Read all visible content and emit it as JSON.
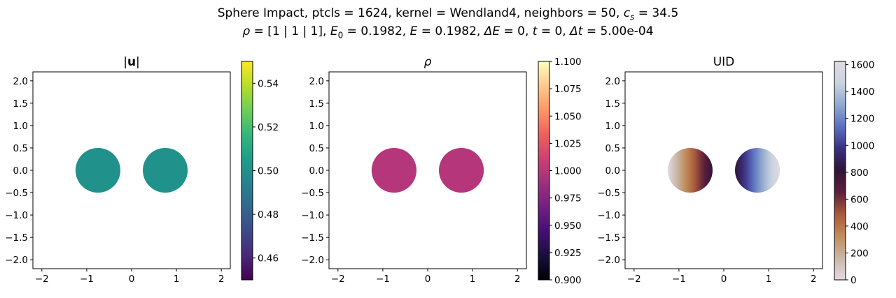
{
  "suptitle": {
    "line1_prefix": "Sphere Impact, ptcls = 1624, kernel = Wendland4, neighbors = 50, ",
    "line1_cs_symbol": "c",
    "line1_cs_sub": "s",
    "line1_cs_value": " = 34.5",
    "line2_rho_symbol": "ρ",
    "line2_rho_value": " = [1 | 1 | 1], ",
    "line2_E0_symbol": "E",
    "line2_E0_sub": "0",
    "line2_E0_value": " = 0.1982, ",
    "line2_E_symbol": "E",
    "line2_E_value": " = 0.1982, ",
    "line2_dE_symbol": "ΔE",
    "line2_dE_value": " = 0, ",
    "line2_t_symbol": "t",
    "line2_t_value": " = 0, ",
    "line2_dt_symbol": "Δt",
    "line2_dt_value": " = 5.00e-04"
  },
  "chart_data": [
    {
      "type": "scatter",
      "title_bars": "|",
      "title_symbol": "u",
      "xlim": [
        -2.2,
        2.2
      ],
      "ylim": [
        -2.2,
        2.2
      ],
      "x_ticks": [
        "−2",
        "−1",
        "0",
        "1",
        "2"
      ],
      "y_ticks": [
        "2.0",
        "1.5",
        "1.0",
        "0.5",
        "0.0",
        "−0.5",
        "−1.0",
        "−1.5",
        "−2.0"
      ],
      "spheres": [
        {
          "center": [
            -0.75,
            0
          ],
          "radius": 0.5,
          "value": 0.5
        },
        {
          "center": [
            0.75,
            0
          ],
          "radius": 0.5,
          "value": 0.5
        }
      ],
      "colorbar": {
        "colormap": "viridis",
        "range": [
          0.45,
          0.55
        ],
        "ticks": [
          "0.54",
          "0.52",
          "0.50",
          "0.48",
          "0.46"
        ],
        "tick_values": [
          0.54,
          0.52,
          0.5,
          0.48,
          0.46
        ]
      },
      "point_color": "#21918c"
    },
    {
      "type": "scatter",
      "title": "ρ",
      "xlim": [
        -2.2,
        2.2
      ],
      "ylim": [
        -2.2,
        2.2
      ],
      "x_ticks": [
        "−2",
        "−1",
        "0",
        "1",
        "2"
      ],
      "y_ticks": [
        "2.0",
        "1.5",
        "1.0",
        "0.5",
        "0.0",
        "−0.5",
        "−1.0",
        "−1.5",
        "−2.0"
      ],
      "spheres": [
        {
          "center": [
            -0.75,
            0
          ],
          "radius": 0.5,
          "value": 1.0
        },
        {
          "center": [
            0.75,
            0
          ],
          "radius": 0.5,
          "value": 1.0
        }
      ],
      "colorbar": {
        "colormap": "magma",
        "range": [
          0.9,
          1.1
        ],
        "ticks": [
          "1.100",
          "1.075",
          "1.050",
          "1.025",
          "1.000",
          "0.975",
          "0.950",
          "0.925",
          "0.900"
        ],
        "tick_values": [
          1.1,
          1.075,
          1.05,
          1.025,
          1.0,
          0.975,
          0.95,
          0.925,
          0.9
        ]
      },
      "point_color": "#b5367a"
    },
    {
      "type": "scatter",
      "title": "UID",
      "xlim": [
        -2.2,
        2.2
      ],
      "ylim": [
        -2.2,
        2.2
      ],
      "x_ticks": [
        "−2",
        "−1",
        "0",
        "1",
        "2"
      ],
      "y_ticks": [
        "2.0",
        "1.5",
        "1.0",
        "0.5",
        "0.0",
        "−0.5",
        "−1.0",
        "−1.5",
        "−2.0"
      ],
      "spheres": [
        {
          "center": [
            -0.75,
            0
          ],
          "radius": 0.5,
          "uid_range": [
            0,
            812
          ]
        },
        {
          "center": [
            0.75,
            0
          ],
          "radius": 0.5,
          "uid_range": [
            812,
            1624
          ]
        }
      ],
      "colorbar": {
        "colormap": "twilight",
        "range": [
          0,
          1624
        ],
        "ticks": [
          "1600",
          "1400",
          "1200",
          "1000",
          "800",
          "600",
          "400",
          "200",
          "0"
        ],
        "tick_values": [
          1600,
          1400,
          1200,
          1000,
          800,
          600,
          400,
          200,
          0
        ]
      }
    }
  ]
}
